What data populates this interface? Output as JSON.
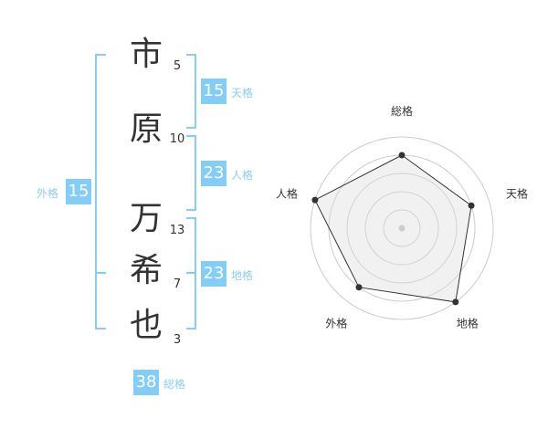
{
  "name_chars": [
    {
      "char": "市",
      "strokes": "5"
    },
    {
      "char": "原",
      "strokes": "10"
    },
    {
      "char": "万",
      "strokes": "13"
    },
    {
      "char": "希",
      "strokes": "7"
    },
    {
      "char": "也",
      "strokes": "3"
    }
  ],
  "kaku": {
    "tenkaku": {
      "label": "天格",
      "value": "15"
    },
    "jinkaku": {
      "label": "人格",
      "value": "23"
    },
    "chikaku": {
      "label": "地格",
      "value": "23"
    },
    "gaikaku": {
      "label": "外格",
      "value": "15"
    },
    "soukaku": {
      "label": "総格",
      "value": "38"
    }
  },
  "colors": {
    "accent": "#84cdf7",
    "label": "#8ccdf2",
    "text": "#333333"
  },
  "chart_data": {
    "type": "radar",
    "axes": [
      "総格",
      "天格",
      "地格",
      "外格",
      "人格"
    ],
    "values": [
      4,
      4,
      5,
      4,
      5
    ],
    "range": [
      0,
      5
    ],
    "rings": 5
  }
}
